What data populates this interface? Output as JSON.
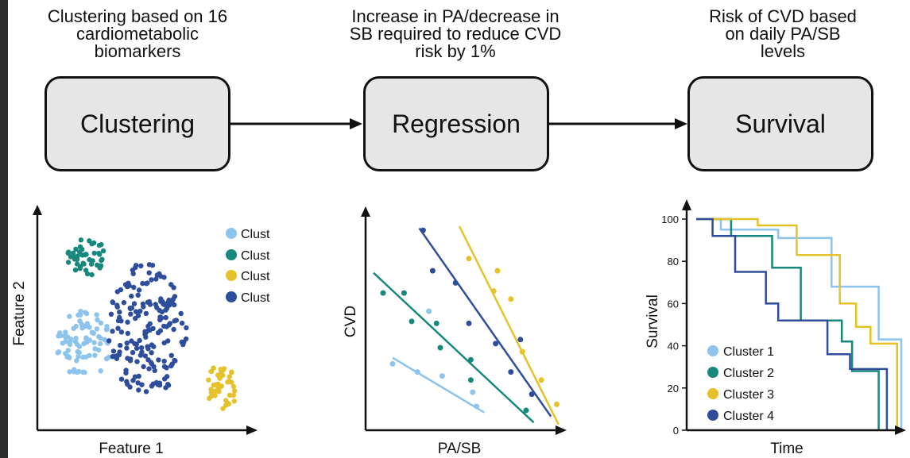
{
  "steps": [
    {
      "caption": [
        "Clustering based on 16",
        "cardiometabolic",
        "biomarkers"
      ],
      "box": "Clustering"
    },
    {
      "caption": [
        "Increase in PA/decrease in",
        "SB required to reduce CVD",
        "risk by 1%"
      ],
      "box": "Regression"
    },
    {
      "caption": [
        "Risk of CVD based",
        "on daily PA/SB",
        "levels"
      ],
      "box": "Survival"
    }
  ],
  "colors": {
    "cluster1": "#8cc4ee",
    "cluster2": "#17887c",
    "cluster3": "#e6c22a",
    "cluster4": "#2e4e9c",
    "box_fill": "#e6e6e6",
    "ink": "#111111"
  },
  "legend": [
    "Cluster 1",
    "Cluster 2",
    "Cluster 3",
    "Cluster 4"
  ],
  "scatter": {
    "xlabel": "Feature 1",
    "ylabel": "Feature 2"
  },
  "regression": {
    "xlabel": "PA/SB",
    "ylabel": "CVD"
  },
  "survival": {
    "xlabel": "Time",
    "ylabel": "Survival",
    "yticks": [
      "0",
      "20",
      "40",
      "60",
      "80",
      "100"
    ]
  },
  "chart_data": [
    {
      "type": "scatter",
      "xlabel": "Feature 1",
      "ylabel": "Feature 2",
      "series": [
        {
          "name": "Cluster 1",
          "center": [
            0.18,
            0.42
          ],
          "spread": [
            0.14,
            0.18
          ],
          "n": 80
        },
        {
          "name": "Cluster 2",
          "center": [
            0.2,
            0.88
          ],
          "spread": [
            0.1,
            0.1
          ],
          "n": 45
        },
        {
          "name": "Cluster 3",
          "center": [
            0.88,
            0.2
          ],
          "spread": [
            0.08,
            0.12
          ],
          "n": 40
        },
        {
          "name": "Cluster 4",
          "center": [
            0.5,
            0.5
          ],
          "spread": [
            0.2,
            0.35
          ],
          "n": 180
        }
      ]
    },
    {
      "type": "scatter",
      "xlabel": "PA/SB",
      "ylabel": "CVD",
      "series": [
        {
          "name": "Cluster 1",
          "points": [
            [
              0.1,
              0.32
            ],
            [
              0.23,
              0.28
            ],
            [
              0.36,
              0.26
            ],
            [
              0.52,
              0.18
            ],
            [
              0.54,
              0.11
            ],
            [
              0.29,
              0.58
            ]
          ],
          "line": [
            [
              0.1,
              0.35
            ],
            [
              0.58,
              0.08
            ]
          ]
        },
        {
          "name": "Cluster 2",
          "points": [
            [
              0.05,
              0.67
            ],
            [
              0.16,
              0.67
            ],
            [
              0.2,
              0.53
            ],
            [
              0.33,
              0.52
            ],
            [
              0.35,
              0.4
            ],
            [
              0.51,
              0.24
            ],
            [
              0.51,
              0.34
            ],
            [
              0.8,
              0.09
            ]
          ],
          "line": [
            [
              0.0,
              0.77
            ],
            [
              0.84,
              0.03
            ]
          ]
        },
        {
          "name": "Cluster 3",
          "points": [
            [
              0.5,
              0.84
            ],
            [
              0.65,
              0.78
            ],
            [
              0.63,
              0.68
            ],
            [
              0.72,
              0.64
            ],
            [
              0.78,
              0.38
            ],
            [
              0.88,
              0.24
            ],
            [
              0.96,
              0.12
            ]
          ],
          "line": [
            [
              0.45,
              1.0
            ],
            [
              0.97,
              0.02
            ]
          ]
        },
        {
          "name": "Cluster 4",
          "points": [
            [
              0.26,
              0.98
            ],
            [
              0.31,
              0.78
            ],
            [
              0.43,
              0.72
            ],
            [
              0.5,
              0.52
            ],
            [
              0.64,
              0.42
            ],
            [
              0.77,
              0.44
            ],
            [
              0.72,
              0.28
            ],
            [
              0.83,
              0.17
            ]
          ],
          "line": [
            [
              0.24,
              0.99
            ],
            [
              0.93,
              0.06
            ]
          ]
        }
      ]
    },
    {
      "type": "line",
      "title": "",
      "xlabel": "Time",
      "ylabel": "Survival",
      "ylim": [
        0,
        100
      ],
      "yticks": [
        0,
        20,
        40,
        60,
        80,
        100
      ],
      "series": [
        {
          "name": "Cluster 1",
          "step": [
            [
              0,
              100
            ],
            [
              0.12,
              100
            ],
            [
              0.12,
              95
            ],
            [
              0.4,
              95
            ],
            [
              0.4,
              91
            ],
            [
              0.66,
              91
            ],
            [
              0.66,
              68
            ],
            [
              0.89,
              68
            ],
            [
              0.89,
              43
            ],
            [
              1.0,
              43
            ],
            [
              1.0,
              0
            ]
          ]
        },
        {
          "name": "Cluster 2",
          "step": [
            [
              0,
              100
            ],
            [
              0.17,
              100
            ],
            [
              0.17,
              92
            ],
            [
              0.37,
              92
            ],
            [
              0.37,
              77
            ],
            [
              0.51,
              77
            ],
            [
              0.51,
              52
            ],
            [
              0.71,
              52
            ],
            [
              0.71,
              42
            ],
            [
              0.76,
              42
            ],
            [
              0.76,
              28
            ],
            [
              0.89,
              28
            ],
            [
              0.89,
              0
            ]
          ]
        },
        {
          "name": "Cluster 3",
          "step": [
            [
              0,
              100
            ],
            [
              0.3,
              100
            ],
            [
              0.3,
              97
            ],
            [
              0.49,
              97
            ],
            [
              0.49,
              83
            ],
            [
              0.7,
              83
            ],
            [
              0.7,
              60
            ],
            [
              0.78,
              60
            ],
            [
              0.78,
              49
            ],
            [
              0.85,
              49
            ],
            [
              0.85,
              41
            ],
            [
              0.98,
              41
            ],
            [
              0.98,
              0
            ]
          ]
        },
        {
          "name": "Cluster 4",
          "step": [
            [
              0,
              100
            ],
            [
              0.08,
              100
            ],
            [
              0.08,
              92
            ],
            [
              0.19,
              92
            ],
            [
              0.19,
              75
            ],
            [
              0.34,
              75
            ],
            [
              0.34,
              60
            ],
            [
              0.4,
              60
            ],
            [
              0.4,
              52
            ],
            [
              0.64,
              52
            ],
            [
              0.64,
              36
            ],
            [
              0.75,
              36
            ],
            [
              0.75,
              29
            ],
            [
              0.93,
              29
            ],
            [
              0.93,
              0
            ]
          ]
        }
      ]
    }
  ]
}
